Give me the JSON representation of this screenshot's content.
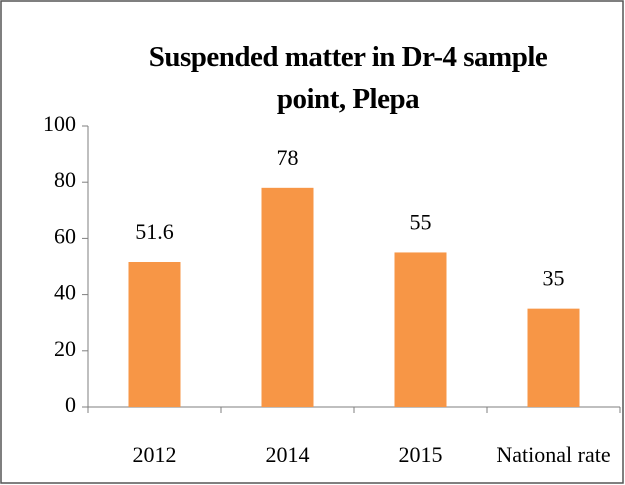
{
  "chart_data": {
    "type": "bar",
    "title": "Suspended matter in Dr-4 sample point, Plepa",
    "categories": [
      "2012",
      "2014",
      "2015",
      "National rate"
    ],
    "values": [
      51.6,
      78,
      55,
      35
    ],
    "color": "#f79646",
    "ylim": [
      0,
      100
    ],
    "yticks": [
      0,
      20,
      40,
      60,
      80,
      100
    ],
    "grid": false
  }
}
